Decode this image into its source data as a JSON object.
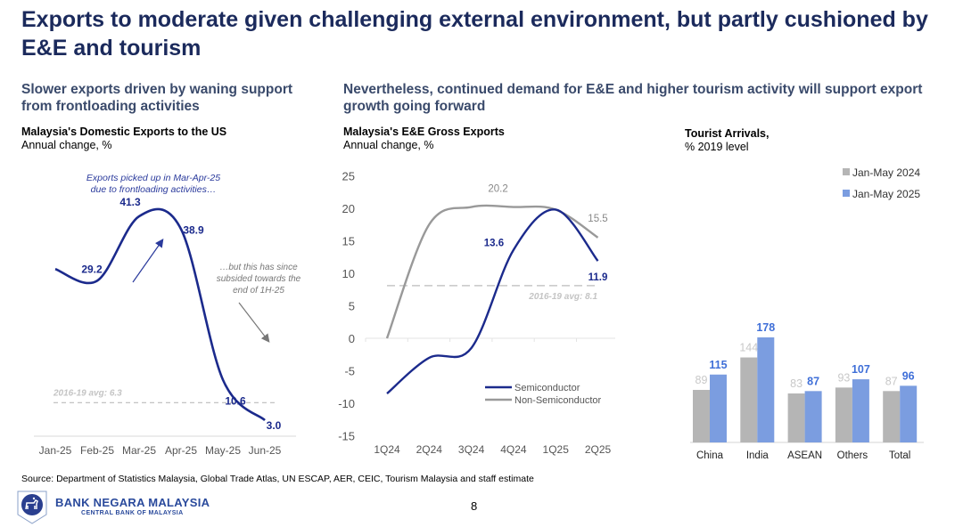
{
  "page": {
    "title": "Exports to moderate given challenging external environment, but partly cushioned by E&E and tourism",
    "left_subhead": "Slower exports driven by waning support from frontloading activities",
    "right_subhead": "Nevertheless, continued demand for E&E and higher tourism activity will support export growth going forward",
    "source": "Source: Department of Statistics Malaysia, Global Trade Atlas, UN ESCAP, AER, CEIC, Tourism Malaysia and staff estimate",
    "bank_name": "BANK NEGARA MALAYSIA",
    "bank_sub": "CENTRAL BANK OF MALAYSIA",
    "page_number": "8",
    "colors": {
      "navy": "#1b2a8c",
      "grey": "#999999",
      "bar_2024": "#b5b5b5",
      "bar_2025": "#7b9de0",
      "label_2025": "#3f6fd8",
      "title": "#1b2a5c"
    }
  },
  "chart_data": [
    {
      "type": "line",
      "title": "Malaysia's Domestic Exports to the US",
      "subtitle": "Annual change, %",
      "xlabel": "",
      "ylabel": "",
      "categories": [
        "Jan-25",
        "Feb-25",
        "Mar-25",
        "Apr-25",
        "May-25",
        "Jun-25"
      ],
      "series": [
        {
          "name": "Domestic Exports to the US",
          "values": [
            31.4,
            29.2,
            41.3,
            38.9,
            10.6,
            3.0
          ],
          "labels": [
            "",
            "29.2",
            "41.3",
            "38.9",
            "10.6",
            "3.0"
          ]
        }
      ],
      "reference_line": {
        "label": "2016-19 avg: 6.3",
        "value": 6.3
      },
      "annotations": [
        "Exports picked up in Mar-Apr-25",
        "due to frontloading activities…",
        "…but this has since",
        "subsided towards the",
        "end of 1H-25"
      ],
      "ylim": [
        -5,
        50
      ],
      "grid": false,
      "y_axis_visible": false
    },
    {
      "type": "line",
      "title": "Malaysia's E&E Gross Exports",
      "subtitle": "Annual change, %",
      "xlabel": "",
      "ylabel": "",
      "categories": [
        "1Q24",
        "2Q24",
        "3Q24",
        "4Q24",
        "1Q25",
        "2Q25"
      ],
      "series": [
        {
          "name": "Semiconductor",
          "values": [
            -8.5,
            -3.0,
            -1.5,
            13.6,
            19.8,
            11.9
          ],
          "labels": [
            "",
            "",
            "",
            "13.6",
            "",
            "11.9"
          ]
        },
        {
          "name": "Non-Semiconductor",
          "values": [
            0.0,
            17.5,
            20.2,
            20.2,
            19.8,
            15.5
          ],
          "labels": [
            "",
            "",
            "20.2",
            "",
            "",
            "15.5"
          ]
        }
      ],
      "reference_line": {
        "label": "2016-19 avg: 8.1",
        "value": 8.1
      },
      "yticks": [
        "25",
        "20",
        "15",
        "10",
        "5",
        "0",
        "-5",
        "-10",
        "-15"
      ],
      "ylim": [
        -15,
        25
      ],
      "legend": "bottom-right",
      "grid": false
    },
    {
      "type": "bar",
      "title": "Tourist Arrivals,",
      "subtitle": "% 2019 level",
      "categories": [
        "China",
        "India",
        "ASEAN",
        "Others",
        "Total"
      ],
      "series": [
        {
          "name": "Jan-May 2024",
          "values": [
            89,
            144,
            83,
            93,
            87
          ]
        },
        {
          "name": "Jan-May 2025",
          "values": [
            115,
            178,
            87,
            107,
            96
          ]
        }
      ],
      "ylim": [
        0,
        200
      ],
      "legend": "top-right",
      "grid": false
    }
  ]
}
